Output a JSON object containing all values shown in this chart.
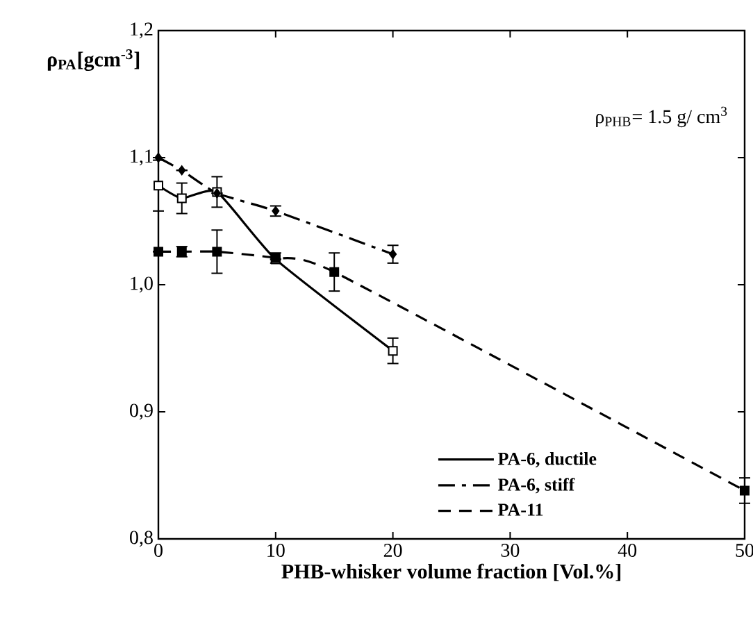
{
  "chart_data": {
    "type": "line",
    "xlabel": "PHB-whisker volume fraction [Vol.%]",
    "ylabel": "ρ$_{PA}$[gcm$^{-3}$]",
    "annotations": [
      "ρ$_{PHB}$= 1.5 g/ cm$^{3}$"
    ],
    "xlim": [
      0,
      50
    ],
    "ylim": [
      0.8,
      1.2
    ],
    "xticks": [
      0,
      10,
      20,
      30,
      40,
      50
    ],
    "yticks": [
      {
        "value": 0.8,
        "label": "0,8"
      },
      {
        "value": 0.9,
        "label": "0,9"
      },
      {
        "value": 1.0,
        "label": "1,0"
      },
      {
        "value": 1.1,
        "label": "1,1"
      },
      {
        "value": 1.2,
        "label": "1,2"
      }
    ],
    "legend": "bottom right",
    "grid": false,
    "series": [
      {
        "name": "PA-6, ductile",
        "color": "#000000",
        "line_style": "solid",
        "marker": "square",
        "x": [
          0,
          2,
          5,
          10,
          20
        ],
        "values": [
          1.078,
          1.068,
          1.073,
          1.02,
          0.948
        ],
        "errors": [
          0.02,
          0.012,
          0.012,
          null,
          0.01
        ]
      },
      {
        "name": "PA-6, stiff",
        "color": "#000000",
        "line_style": "dashdot",
        "marker": "diamond",
        "x": [
          0,
          2,
          5,
          10,
          20
        ],
        "values": [
          1.1,
          1.09,
          1.072,
          1.058,
          1.024
        ],
        "errors": [
          null,
          null,
          null,
          0.004,
          0.007
        ]
      },
      {
        "name": "PA-11",
        "color": "#000000",
        "line_style": "dashed",
        "marker": "square",
        "x": [
          0,
          2,
          5,
          10,
          15,
          50
        ],
        "values": [
          1.026,
          1.026,
          1.026,
          1.021,
          1.01,
          0.838
        ],
        "errors": [
          null,
          0.004,
          0.017,
          0.004,
          0.015,
          0.01
        ]
      }
    ]
  }
}
